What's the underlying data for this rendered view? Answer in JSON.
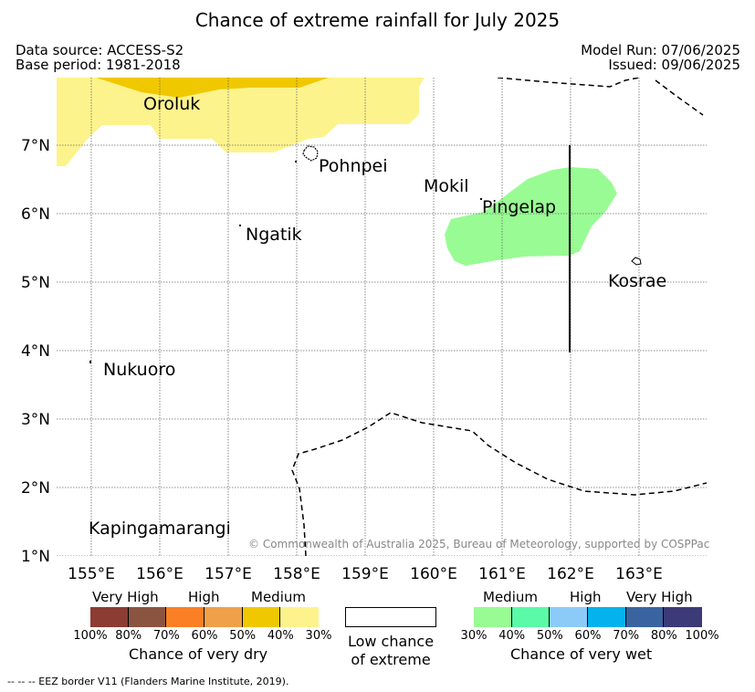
{
  "header": {
    "title": "Chance of extreme rainfall for July 2025",
    "data_source": "Data source: ACCESS-S2",
    "base_period": "Base period: 1981-2018",
    "model_run": "Model Run: 07/06/2025",
    "issued": "Issued: 09/06/2025"
  },
  "map": {
    "lat_ticks": [
      "1°N",
      "2°N",
      "3°N",
      "4°N",
      "5°N",
      "6°N",
      "7°N"
    ],
    "lon_ticks": [
      "155°E",
      "156°E",
      "157°E",
      "158°E",
      "159°E",
      "160°E",
      "161°E",
      "162°E",
      "163°E"
    ],
    "places": {
      "oroluk": "Oroluk",
      "pohnpei": "Pohnpei",
      "mokil": "Mokil",
      "pingelap": "Pingelap",
      "ngatik": "Ngatik",
      "kosrae": "Kosrae",
      "nukuoro": "Nukuoro",
      "kapingamarangi": "Kapingamarangi"
    },
    "copyright": "© Commonwealth of Australia 2025, Bureau of Meteorology, supported by COSPPac",
    "colors": {
      "dry_medium_30_40": "#fdf38c",
      "dry_medium_40_50": "#f0c800",
      "wet_medium_30_40": "#99fb93"
    }
  },
  "legend": {
    "dry": {
      "groups": [
        "Very High",
        "High",
        "Medium"
      ],
      "colors": [
        "#8c3c32",
        "#8b5440",
        "#fb7f24",
        "#f0a048",
        "#f0c800",
        "#fdf38c"
      ],
      "percents": [
        "100%",
        "80%",
        "70%",
        "60%",
        "50%",
        "40%",
        "30%"
      ],
      "title": "Chance of very dry"
    },
    "low": {
      "line1": "Low chance",
      "line2": "of extreme",
      "color": "#ffffff"
    },
    "wet": {
      "groups": [
        "Medium",
        "High",
        "Very High"
      ],
      "colors": [
        "#99fb93",
        "#5afaa8",
        "#8ccbf8",
        "#04b2ed",
        "#3a64a0",
        "#3c3a78"
      ],
      "percents": [
        "30%",
        "40%",
        "50%",
        "60%",
        "70%",
        "80%",
        "100%"
      ],
      "title": "Chance of very wet"
    }
  },
  "footnote": "--  --  -- EEZ border V11 (Flanders Marine Institute, 2019)."
}
